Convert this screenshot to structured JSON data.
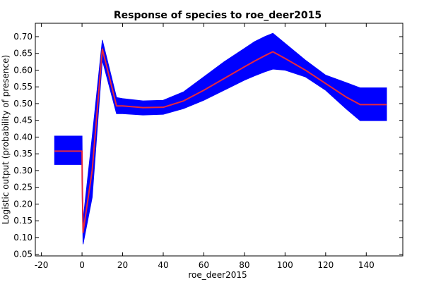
{
  "chart_data": {
    "type": "area",
    "title": "Response of species to roe_deer2015",
    "xlabel": "roe_deer2015",
    "ylabel": "Logistic output (probability of presence)",
    "xlim": [
      -23,
      158
    ],
    "ylim": [
      0.045,
      0.74
    ],
    "x_ticks": [
      -20,
      0,
      20,
      40,
      60,
      80,
      100,
      120,
      140
    ],
    "y_ticks": [
      0.05,
      0.1,
      0.15,
      0.2,
      0.25,
      0.3,
      0.35,
      0.4,
      0.45,
      0.5,
      0.55,
      0.6,
      0.65,
      0.7
    ],
    "x_tick_labels": [
      "-20",
      "0",
      "20",
      "40",
      "60",
      "80",
      "100",
      "120",
      "140"
    ],
    "y_tick_labels": [
      "0.05",
      "0.10",
      "0.15",
      "0.20",
      "0.25",
      "0.30",
      "0.35",
      "0.40",
      "0.45",
      "0.50",
      "0.55",
      "0.60",
      "0.65",
      "0.70"
    ],
    "colors": {
      "band": "#0000ff",
      "mean": "#e8283c",
      "axes": "#000000"
    },
    "series": [
      {
        "role": "mean",
        "x": [
          -13.5,
          0,
          0.1,
          0.5,
          5,
          10,
          17,
          20,
          30,
          40,
          50,
          60,
          70,
          80,
          85,
          90,
          94,
          100,
          110,
          120,
          130,
          137,
          150
        ],
        "y": [
          0.358,
          0.358,
          0.27,
          0.115,
          0.3,
          0.663,
          0.493,
          0.493,
          0.488,
          0.489,
          0.508,
          0.54,
          0.575,
          0.61,
          0.627,
          0.643,
          0.655,
          0.635,
          0.6,
          0.56,
          0.52,
          0.497,
          0.497
        ]
      },
      {
        "role": "upper",
        "x": [
          -13.5,
          0,
          0.1,
          0.5,
          5,
          10,
          17,
          20,
          30,
          40,
          50,
          60,
          70,
          80,
          85,
          90,
          94,
          100,
          110,
          120,
          130,
          137,
          150
        ],
        "y": [
          0.403,
          0.403,
          0.33,
          0.15,
          0.4,
          0.69,
          0.518,
          0.515,
          0.508,
          0.51,
          0.535,
          0.58,
          0.625,
          0.665,
          0.685,
          0.7,
          0.71,
          0.68,
          0.63,
          0.585,
          0.563,
          0.547,
          0.547
        ]
      },
      {
        "role": "lower",
        "x": [
          -13.5,
          0,
          0.1,
          0.5,
          5,
          10,
          17,
          20,
          30,
          40,
          50,
          60,
          70,
          80,
          85,
          90,
          94,
          100,
          110,
          120,
          130,
          137,
          150
        ],
        "y": [
          0.318,
          0.318,
          0.22,
          0.08,
          0.22,
          0.63,
          0.47,
          0.47,
          0.466,
          0.468,
          0.485,
          0.51,
          0.54,
          0.57,
          0.583,
          0.595,
          0.603,
          0.6,
          0.58,
          0.54,
          0.485,
          0.449,
          0.449
        ]
      }
    ]
  }
}
